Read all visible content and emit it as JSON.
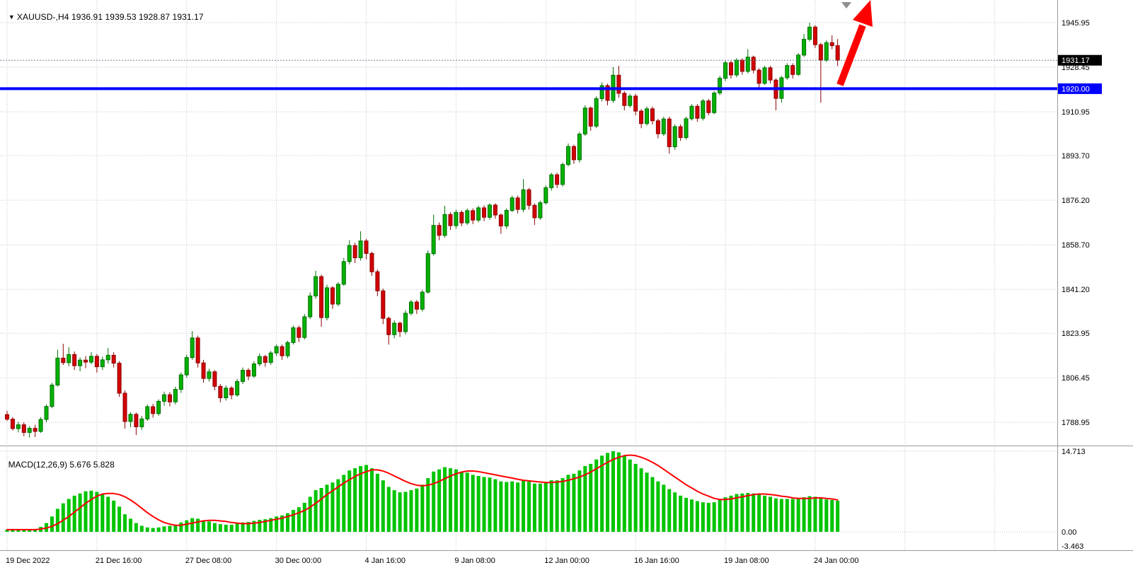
{
  "header": {
    "symbol_period": "XAUUSD-,H4",
    "ohlc_text": "1936.91 1939.53 1928.87 1931.17"
  },
  "macd_panel": {
    "label": "MACD(12,26,9)",
    "values_text": "5.676 5.828"
  },
  "icons": {
    "dropdown_triangle": "▼"
  },
  "chart_data": {
    "type": "candlestick",
    "symbol": "XAUUSD-",
    "timeframe": "H4",
    "last_ohlc": {
      "open": 1936.91,
      "high": 1939.53,
      "low": 1928.87,
      "close": 1931.17
    },
    "bid_price": 1931.17,
    "hline": {
      "price": 1920.0,
      "label": "1920.00"
    },
    "price_axis": {
      "labels": [
        1945.95,
        1928.45,
        1910.95,
        1893.7,
        1876.2,
        1858.7,
        1841.2,
        1823.95,
        1806.45,
        1788.95
      ],
      "bid_tag": "1931.17",
      "hline_tag": "1920.00"
    },
    "time_axis": {
      "labels": [
        {
          "text": "19 Dec 2022",
          "bar": 0
        },
        {
          "text": "21 Dec 16:00",
          "bar": 16
        },
        {
          "text": "27 Dec 08:00",
          "bar": 32
        },
        {
          "text": "30 Dec 00:00",
          "bar": 48
        },
        {
          "text": "4 Jan 16:00",
          "bar": 64
        },
        {
          "text": "9 Jan 08:00",
          "bar": 80
        },
        {
          "text": "12 Jan 00:00",
          "bar": 96
        },
        {
          "text": "16 Jan 16:00",
          "bar": 112
        },
        {
          "text": "19 Jan 08:00",
          "bar": 128
        },
        {
          "text": "24 Jan 00:00",
          "bar": 144
        }
      ]
    },
    "candles": [
      [
        1792.0,
        1793.5,
        1789.5,
        1790.2
      ],
      [
        1790.2,
        1791.0,
        1785.8,
        1786.5
      ],
      [
        1786.5,
        1789.2,
        1785.0,
        1788.0
      ],
      [
        1788.0,
        1789.0,
        1783.5,
        1785.0
      ],
      [
        1785.0,
        1787.5,
        1783.0,
        1786.6
      ],
      [
        1786.6,
        1788.0,
        1783.2,
        1785.4
      ],
      [
        1785.4,
        1791.0,
        1784.8,
        1790.1
      ],
      [
        1790.1,
        1796.0,
        1789.0,
        1795.2
      ],
      [
        1795.2,
        1804.5,
        1794.5,
        1803.6
      ],
      [
        1803.6,
        1817.5,
        1803.0,
        1814.2
      ],
      [
        1814.2,
        1819.8,
        1811.5,
        1812.4
      ],
      [
        1812.4,
        1818.5,
        1811.0,
        1815.6
      ],
      [
        1815.6,
        1816.8,
        1809.5,
        1811.2
      ],
      [
        1811.2,
        1814.5,
        1809.0,
        1813.4
      ],
      [
        1813.4,
        1815.0,
        1810.2,
        1812.6
      ],
      [
        1812.6,
        1816.5,
        1811.8,
        1814.9
      ],
      [
        1814.9,
        1815.8,
        1808.5,
        1810.8
      ],
      [
        1810.8,
        1814.8,
        1809.5,
        1813.5
      ],
      [
        1813.5,
        1818.2,
        1812.0,
        1815.3
      ],
      [
        1815.3,
        1816.5,
        1810.5,
        1812.2
      ],
      [
        1812.2,
        1813.0,
        1799.0,
        1800.4
      ],
      [
        1800.4,
        1801.5,
        1786.5,
        1789.3
      ],
      [
        1789.3,
        1793.0,
        1787.0,
        1792.1
      ],
      [
        1792.1,
        1792.8,
        1784.0,
        1787.2
      ],
      [
        1787.2,
        1791.5,
        1786.0,
        1790.3
      ],
      [
        1790.3,
        1796.0,
        1789.5,
        1795.1
      ],
      [
        1795.1,
        1796.2,
        1790.8,
        1792.4
      ],
      [
        1792.4,
        1798.0,
        1791.5,
        1797.2
      ],
      [
        1797.2,
        1801.0,
        1795.5,
        1799.8
      ],
      [
        1799.8,
        1800.8,
        1795.2,
        1797.0
      ],
      [
        1797.0,
        1803.0,
        1796.0,
        1801.9
      ],
      [
        1801.9,
        1808.5,
        1800.5,
        1807.6
      ],
      [
        1807.6,
        1815.5,
        1806.5,
        1814.4
      ],
      [
        1814.4,
        1824.8,
        1813.5,
        1822.1
      ],
      [
        1822.1,
        1823.0,
        1810.5,
        1812.3
      ],
      [
        1812.3,
        1813.5,
        1804.5,
        1806.2
      ],
      [
        1806.2,
        1810.0,
        1805.0,
        1808.8
      ],
      [
        1808.8,
        1809.5,
        1801.5,
        1803.1
      ],
      [
        1803.1,
        1804.0,
        1796.8,
        1798.6
      ],
      [
        1798.6,
        1803.5,
        1797.5,
        1802.4
      ],
      [
        1802.4,
        1803.2,
        1798.0,
        1799.7
      ],
      [
        1799.7,
        1806.0,
        1799.0,
        1805.0
      ],
      [
        1805.0,
        1810.5,
        1804.0,
        1809.4
      ],
      [
        1809.4,
        1810.2,
        1805.5,
        1807.1
      ],
      [
        1807.1,
        1813.0,
        1806.5,
        1811.9
      ],
      [
        1811.9,
        1816.0,
        1811.0,
        1814.8
      ],
      [
        1814.8,
        1815.5,
        1810.8,
        1812.5
      ],
      [
        1812.5,
        1817.0,
        1811.5,
        1816.2
      ],
      [
        1816.2,
        1819.5,
        1815.0,
        1818.7
      ],
      [
        1818.7,
        1819.5,
        1813.5,
        1815.1
      ],
      [
        1815.1,
        1821.0,
        1814.2,
        1820.3
      ],
      [
        1820.3,
        1827.0,
        1819.5,
        1826.1
      ],
      [
        1826.1,
        1827.0,
        1820.5,
        1822.3
      ],
      [
        1822.3,
        1831.5,
        1821.5,
        1830.4
      ],
      [
        1830.4,
        1840.0,
        1829.5,
        1838.6
      ],
      [
        1838.6,
        1848.5,
        1837.5,
        1846.2
      ],
      [
        1846.2,
        1847.0,
        1826.5,
        1830.1
      ],
      [
        1830.1,
        1843.0,
        1829.0,
        1841.8
      ],
      [
        1841.8,
        1842.5,
        1833.5,
        1835.4
      ],
      [
        1835.4,
        1844.0,
        1834.5,
        1843.2
      ],
      [
        1843.2,
        1853.5,
        1842.5,
        1852.1
      ],
      [
        1852.1,
        1860.5,
        1851.0,
        1858.4
      ],
      [
        1858.4,
        1859.5,
        1851.5,
        1853.6
      ],
      [
        1853.6,
        1864.0,
        1852.5,
        1860.2
      ],
      [
        1860.2,
        1861.0,
        1853.0,
        1855.3
      ],
      [
        1855.3,
        1856.0,
        1846.5,
        1848.1
      ],
      [
        1848.1,
        1849.0,
        1838.5,
        1840.6
      ],
      [
        1840.6,
        1841.5,
        1827.5,
        1829.8
      ],
      [
        1829.8,
        1830.5,
        1819.5,
        1823.4
      ],
      [
        1823.4,
        1829.0,
        1822.0,
        1827.9
      ],
      [
        1827.9,
        1828.5,
        1822.5,
        1824.6
      ],
      [
        1824.6,
        1833.0,
        1823.5,
        1831.8
      ],
      [
        1831.8,
        1837.0,
        1831.0,
        1836.2
      ],
      [
        1836.2,
        1837.0,
        1831.5,
        1833.4
      ],
      [
        1833.4,
        1841.0,
        1832.5,
        1840.1
      ],
      [
        1840.1,
        1856.5,
        1839.5,
        1855.2
      ],
      [
        1855.2,
        1870.5,
        1854.5,
        1866.3
      ],
      [
        1866.3,
        1867.5,
        1860.5,
        1862.4
      ],
      [
        1862.4,
        1874.0,
        1861.5,
        1870.6
      ],
      [
        1870.6,
        1871.5,
        1864.5,
        1866.2
      ],
      [
        1866.2,
        1872.5,
        1865.0,
        1871.4
      ],
      [
        1871.4,
        1872.2,
        1866.0,
        1867.3
      ],
      [
        1867.3,
        1873.0,
        1866.5,
        1872.1
      ],
      [
        1872.1,
        1873.0,
        1866.8,
        1868.4
      ],
      [
        1868.4,
        1874.0,
        1867.5,
        1873.2
      ],
      [
        1873.2,
        1874.2,
        1868.0,
        1869.5
      ],
      [
        1869.5,
        1875.0,
        1868.5,
        1874.3
      ],
      [
        1874.3,
        1875.0,
        1869.0,
        1870.4
      ],
      [
        1870.4,
        1871.0,
        1863.0,
        1866.1
      ],
      [
        1866.1,
        1873.0,
        1865.0,
        1872.2
      ],
      [
        1872.2,
        1878.0,
        1871.5,
        1877.1
      ],
      [
        1877.1,
        1878.0,
        1871.0,
        1872.6
      ],
      [
        1872.6,
        1884.5,
        1871.5,
        1880.3
      ],
      [
        1880.3,
        1881.0,
        1872.5,
        1874.2
      ],
      [
        1874.2,
        1875.0,
        1866.5,
        1869.3
      ],
      [
        1869.3,
        1876.0,
        1868.5,
        1875.2
      ],
      [
        1875.2,
        1882.0,
        1874.5,
        1881.1
      ],
      [
        1881.1,
        1887.0,
        1880.0,
        1886.2
      ],
      [
        1886.2,
        1887.0,
        1881.0,
        1882.4
      ],
      [
        1882.4,
        1891.0,
        1881.5,
        1890.2
      ],
      [
        1890.2,
        1898.5,
        1889.5,
        1897.3
      ],
      [
        1897.3,
        1898.0,
        1890.5,
        1892.1
      ],
      [
        1892.1,
        1903.0,
        1891.0,
        1902.2
      ],
      [
        1902.2,
        1913.5,
        1901.5,
        1912.4
      ],
      [
        1912.4,
        1913.0,
        1903.5,
        1905.3
      ],
      [
        1905.3,
        1917.0,
        1904.5,
        1916.1
      ],
      [
        1916.1,
        1922.5,
        1915.0,
        1921.2
      ],
      [
        1921.2,
        1922.0,
        1913.5,
        1915.4
      ],
      [
        1915.4,
        1928.5,
        1914.5,
        1925.3
      ],
      [
        1925.3,
        1929.0,
        1916.5,
        1918.2
      ],
      [
        1918.2,
        1919.0,
        1911.5,
        1913.4
      ],
      [
        1913.4,
        1918.0,
        1912.5,
        1917.1
      ],
      [
        1917.1,
        1918.0,
        1909.5,
        1911.2
      ],
      [
        1911.2,
        1912.0,
        1904.5,
        1906.3
      ],
      [
        1906.3,
        1913.0,
        1905.5,
        1912.1
      ],
      [
        1912.1,
        1913.0,
        1906.0,
        1907.4
      ],
      [
        1907.4,
        1908.2,
        1900.5,
        1902.3
      ],
      [
        1902.3,
        1909.0,
        1901.5,
        1908.1
      ],
      [
        1908.1,
        1909.0,
        1894.5,
        1897.2
      ],
      [
        1897.2,
        1906.0,
        1896.0,
        1905.1
      ],
      [
        1905.1,
        1906.0,
        1899.5,
        1900.8
      ],
      [
        1900.8,
        1909.0,
        1900.0,
        1908.2
      ],
      [
        1908.2,
        1914.0,
        1907.5,
        1913.1
      ],
      [
        1913.1,
        1914.0,
        1907.0,
        1908.4
      ],
      [
        1908.4,
        1916.0,
        1907.5,
        1915.2
      ],
      [
        1915.2,
        1916.0,
        1909.5,
        1910.6
      ],
      [
        1910.6,
        1919.0,
        1910.0,
        1918.3
      ],
      [
        1918.3,
        1925.0,
        1917.5,
        1924.1
      ],
      [
        1924.1,
        1931.0,
        1923.0,
        1930.2
      ],
      [
        1930.2,
        1931.0,
        1924.0,
        1925.4
      ],
      [
        1925.4,
        1932.0,
        1924.5,
        1931.2
      ],
      [
        1931.2,
        1932.0,
        1925.5,
        1926.8
      ],
      [
        1926.8,
        1935.5,
        1926.0,
        1932.4
      ],
      [
        1932.4,
        1933.0,
        1926.0,
        1927.3
      ],
      [
        1927.3,
        1928.0,
        1920.5,
        1922.1
      ],
      [
        1922.1,
        1929.0,
        1921.5,
        1928.2
      ],
      [
        1928.2,
        1929.0,
        1922.0,
        1923.4
      ],
      [
        1923.4,
        1924.0,
        1911.5,
        1916.2
      ],
      [
        1916.2,
        1925.0,
        1914.5,
        1924.3
      ],
      [
        1924.3,
        1930.0,
        1923.5,
        1929.1
      ],
      [
        1929.1,
        1930.0,
        1924.0,
        1925.6
      ],
      [
        1925.6,
        1934.0,
        1925.0,
        1933.2
      ],
      [
        1933.2,
        1941.5,
        1932.5,
        1939.4
      ],
      [
        1939.4,
        1945.95,
        1938.5,
        1944.2
      ],
      [
        1944.2,
        1945.0,
        1936.0,
        1937.3
      ],
      [
        1937.3,
        1938.0,
        1914.5,
        1931.2
      ],
      [
        1931.2,
        1939.0,
        1930.5,
        1938.1
      ],
      [
        1938.1,
        1941.0,
        1935.5,
        1936.9
      ],
      [
        1936.91,
        1939.53,
        1928.87,
        1931.17
      ]
    ],
    "macd": {
      "params": "12,26,9",
      "axis_labels": [
        14.713,
        0.0,
        -3.463
      ],
      "last_main": 5.676,
      "last_signal": 5.828,
      "hist": [
        0.4,
        0.5,
        0.4,
        0.3,
        0.4,
        0.5,
        0.9,
        1.6,
        2.8,
        4.2,
        5.2,
        6.0,
        6.6,
        7.0,
        7.4,
        7.5,
        7.3,
        6.9,
        6.4,
        5.7,
        4.6,
        3.2,
        2.4,
        1.6,
        1.1,
        0.8,
        0.7,
        0.8,
        1.0,
        1.1,
        1.3,
        1.7,
        2.1,
        2.5,
        2.4,
        2.1,
        1.9,
        1.6,
        1.4,
        1.3,
        1.3,
        1.5,
        1.7,
        1.8,
        2.0,
        2.2,
        2.3,
        2.5,
        2.8,
        3.0,
        3.4,
        4.0,
        4.5,
        5.3,
        6.4,
        7.6,
        8.0,
        8.6,
        9.0,
        9.6,
        10.4,
        11.2,
        11.6,
        12.0,
        12.2,
        11.6,
        10.6,
        9.4,
        8.2,
        7.6,
        7.2,
        7.3,
        7.6,
        7.9,
        8.6,
        9.8,
        11.0,
        11.4,
        11.8,
        11.6,
        11.4,
        11.0,
        10.8,
        10.4,
        10.2,
        10.0,
        9.9,
        9.6,
        9.2,
        9.1,
        9.2,
        9.0,
        9.4,
        9.2,
        8.8,
        8.8,
        9.0,
        9.4,
        9.4,
        9.8,
        10.4,
        10.6,
        11.2,
        12.0,
        12.4,
        13.2,
        13.9,
        14.4,
        14.713,
        14.5,
        13.9,
        13.2,
        12.4,
        11.6,
        10.8,
        10.0,
        9.2,
        8.6,
        7.8,
        7.2,
        6.6,
        6.2,
        5.9,
        5.6,
        5.4,
        5.3,
        5.4,
        5.8,
        6.3,
        6.6,
        6.9,
        7.0,
        7.1,
        7.0,
        6.8,
        6.6,
        6.4,
        6.1,
        6.0,
        6.0,
        6.0,
        6.1,
        6.3,
        6.5,
        6.4,
        6.1,
        5.9,
        5.8,
        5.676
      ],
      "signal": [
        0.4,
        0.4,
        0.4,
        0.4,
        0.4,
        0.4,
        0.5,
        0.7,
        1.0,
        1.5,
        2.1,
        2.8,
        3.6,
        4.4,
        5.2,
        5.9,
        6.5,
        6.9,
        7.0,
        7.0,
        6.8,
        6.4,
        5.8,
        5.1,
        4.3,
        3.5,
        2.8,
        2.2,
        1.7,
        1.4,
        1.2,
        1.2,
        1.4,
        1.6,
        1.8,
        2.0,
        2.1,
        2.1,
        2.0,
        1.9,
        1.7,
        1.6,
        1.5,
        1.5,
        1.6,
        1.7,
        1.9,
        2.1,
        2.3,
        2.5,
        2.8,
        3.1,
        3.5,
        3.9,
        4.5,
        5.2,
        6.0,
        6.8,
        7.5,
        8.2,
        8.9,
        9.5,
        10.1,
        10.6,
        11.0,
        11.3,
        11.3,
        11.1,
        10.7,
        10.2,
        9.7,
        9.2,
        8.8,
        8.5,
        8.4,
        8.5,
        8.8,
        9.2,
        9.7,
        10.2,
        10.6,
        10.9,
        11.1,
        11.1,
        11.0,
        10.8,
        10.6,
        10.4,
        10.2,
        10.0,
        9.8,
        9.6,
        9.4,
        9.3,
        9.2,
        9.1,
        9.0,
        9.0,
        9.1,
        9.2,
        9.4,
        9.7,
        10.0,
        10.4,
        10.9,
        11.5,
        12.1,
        12.7,
        13.2,
        13.6,
        13.9,
        14.0,
        13.9,
        13.6,
        13.2,
        12.7,
        12.1,
        11.4,
        10.7,
        10.0,
        9.3,
        8.6,
        8.0,
        7.4,
        6.9,
        6.5,
        6.1,
        5.9,
        5.9,
        6.0,
        6.2,
        6.4,
        6.6,
        6.8,
        6.9,
        6.9,
        6.8,
        6.7,
        6.5,
        6.4,
        6.2,
        6.1,
        6.1,
        6.1,
        6.2,
        6.2,
        6.1,
        6.0,
        5.828
      ]
    },
    "colors": {
      "up": "#00B200",
      "up_edge": "#006E00",
      "down": "#D40000",
      "down_edge": "#8B0000",
      "grid": "#C2C2D4",
      "hist": "#00C400",
      "signal": "#FF0000",
      "hline": "#0000FF",
      "arrow": "#FF0000",
      "bid_line": "#708090",
      "axis_text": "#000000",
      "tag_bid_bg": "#000000",
      "tag_hline_bg": "#0000FF",
      "separator": "#9A9A9A",
      "anchor": "#8F8F8F"
    }
  }
}
